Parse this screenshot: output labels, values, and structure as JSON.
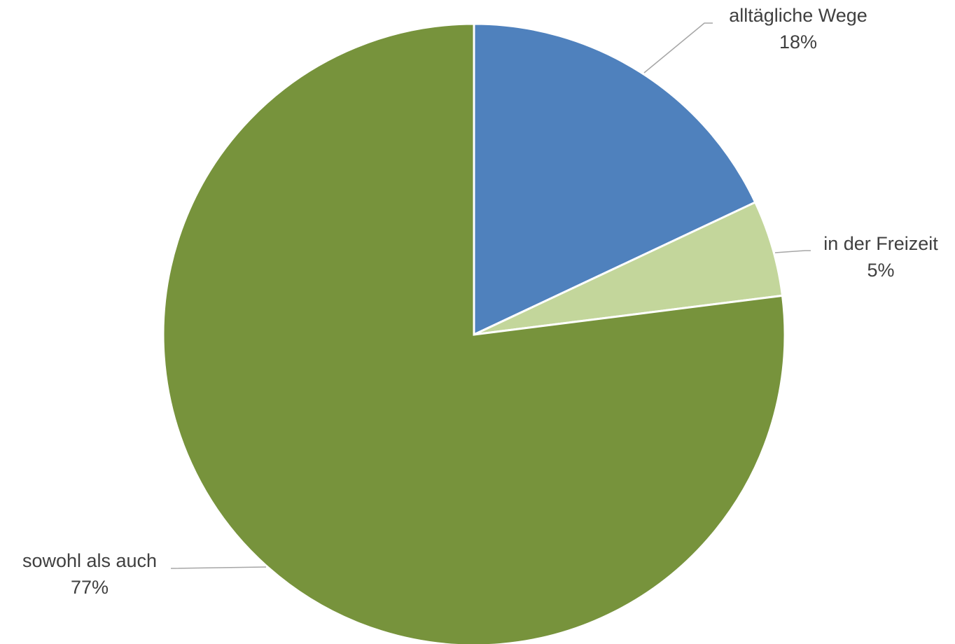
{
  "chart_data": {
    "type": "pie",
    "title": "",
    "legend": "none",
    "start_angle_deg": 0,
    "direction": "clockwise",
    "slices": [
      {
        "label": "alltägliche Wege",
        "value": 18,
        "value_label": "18%",
        "color": "#4f81bd"
      },
      {
        "label": "in der Freizeit",
        "value": 5,
        "value_label": "5%",
        "color": "#c3d69b"
      },
      {
        "label": "sowohl als auch",
        "value": 77,
        "value_label": "77%",
        "color": "#77933c"
      }
    ],
    "leader_line_color": "#a6a6a6",
    "label_text_color": "#404040"
  }
}
